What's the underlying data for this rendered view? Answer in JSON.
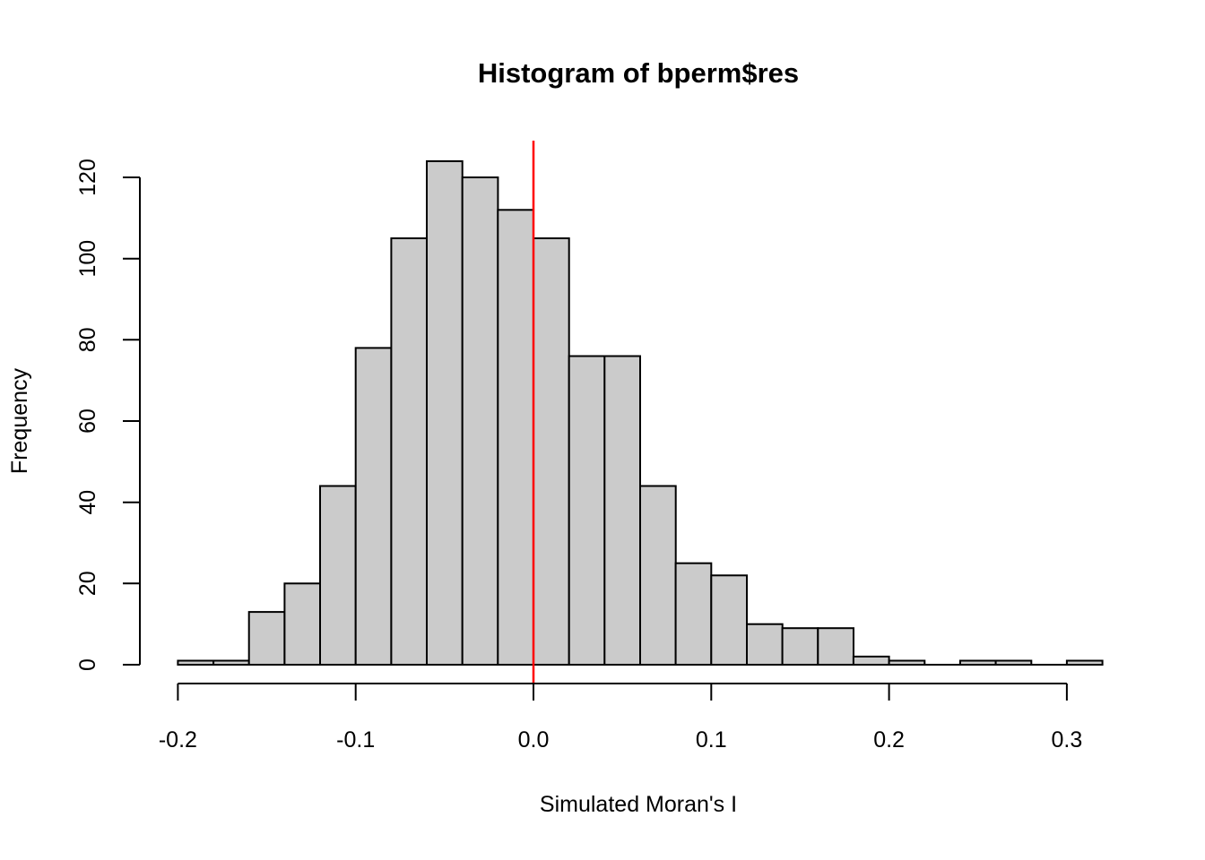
{
  "title": "Histogram of bperm$res",
  "chart_data": {
    "type": "bar",
    "subtype": "histogram",
    "title": "Histogram of bperm$res",
    "xlabel": "Simulated Moran's I",
    "ylabel": "Frequency",
    "bins": {
      "start": -0.2,
      "width": 0.02,
      "counts": [
        1,
        1,
        13,
        20,
        44,
        78,
        105,
        124,
        120,
        112,
        105,
        76,
        76,
        44,
        25,
        22,
        10,
        9,
        9,
        2,
        1,
        0,
        1,
        1,
        0,
        1
      ]
    },
    "x_ticks": {
      "values": [
        -0.2,
        -0.1,
        0.0,
        0.1,
        0.2,
        0.3
      ],
      "labels": [
        "-0.2",
        "-0.1",
        "0.0",
        "0.1",
        "0.2",
        "0.3"
      ]
    },
    "y_ticks": {
      "values": [
        0,
        20,
        40,
        60,
        80,
        100,
        120
      ],
      "labels": [
        "0",
        "20",
        "40",
        "60",
        "80",
        "100",
        "120"
      ]
    },
    "xlim": [
      -0.2,
      0.32
    ],
    "ylim": [
      0,
      124
    ],
    "grid": "off",
    "legend": "none",
    "vline": {
      "x": 0.0,
      "color": "#FF0000"
    },
    "bar_fill": "#CBCBCB",
    "bar_stroke": "#000000",
    "axis_color": "#000000"
  }
}
